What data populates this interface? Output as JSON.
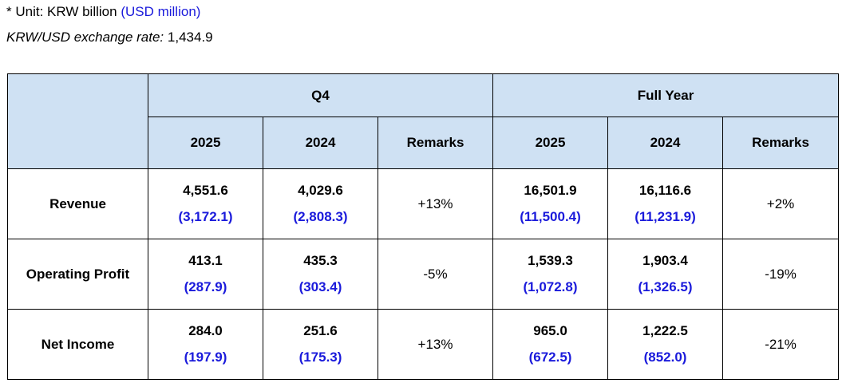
{
  "notes": {
    "unit_prefix": "* Unit: KRW billion",
    "unit_usd": "(USD million)",
    "rate_label": "KRW/USD exchange rate:",
    "rate_value": "1,434.9"
  },
  "table": {
    "group_headers": [
      "Q4",
      "Full Year"
    ],
    "sub_headers": [
      "2025",
      "2024",
      "Remarks",
      "2025",
      "2024",
      "Remarks"
    ],
    "rows": [
      {
        "label": "Revenue",
        "q4_2025": {
          "krw": "4,551.6",
          "usd": "(3,172.1)"
        },
        "q4_2024": {
          "krw": "4,029.6",
          "usd": "(2,808.3)"
        },
        "q4_remark": "+13%",
        "fy_2025": {
          "krw": "16,501.9",
          "usd": "(11,500.4)"
        },
        "fy_2024": {
          "krw": "16,116.6",
          "usd": "(11,231.9)"
        },
        "fy_remark": "+2%"
      },
      {
        "label": "Operating Profit",
        "q4_2025": {
          "krw": "413.1",
          "usd": "(287.9)"
        },
        "q4_2024": {
          "krw": "435.3",
          "usd": "(303.4)"
        },
        "q4_remark": "-5%",
        "fy_2025": {
          "krw": "1,539.3",
          "usd": "(1,072.8)"
        },
        "fy_2024": {
          "krw": "1,903.4",
          "usd": "(1,326.5)"
        },
        "fy_remark": "-19%"
      },
      {
        "label": "Net Income",
        "q4_2025": {
          "krw": "284.0",
          "usd": "(197.9)"
        },
        "q4_2024": {
          "krw": "251.6",
          "usd": "(175.3)"
        },
        "q4_remark": "+13%",
        "fy_2025": {
          "krw": "965.0",
          "usd": "(672.5)"
        },
        "fy_2024": {
          "krw": "1,222.5",
          "usd": "(852.0)"
        },
        "fy_remark": "-21%"
      }
    ]
  },
  "colors": {
    "header_bg": "#cfe1f3",
    "usd_text": "#1a1adb",
    "border": "#000000"
  }
}
